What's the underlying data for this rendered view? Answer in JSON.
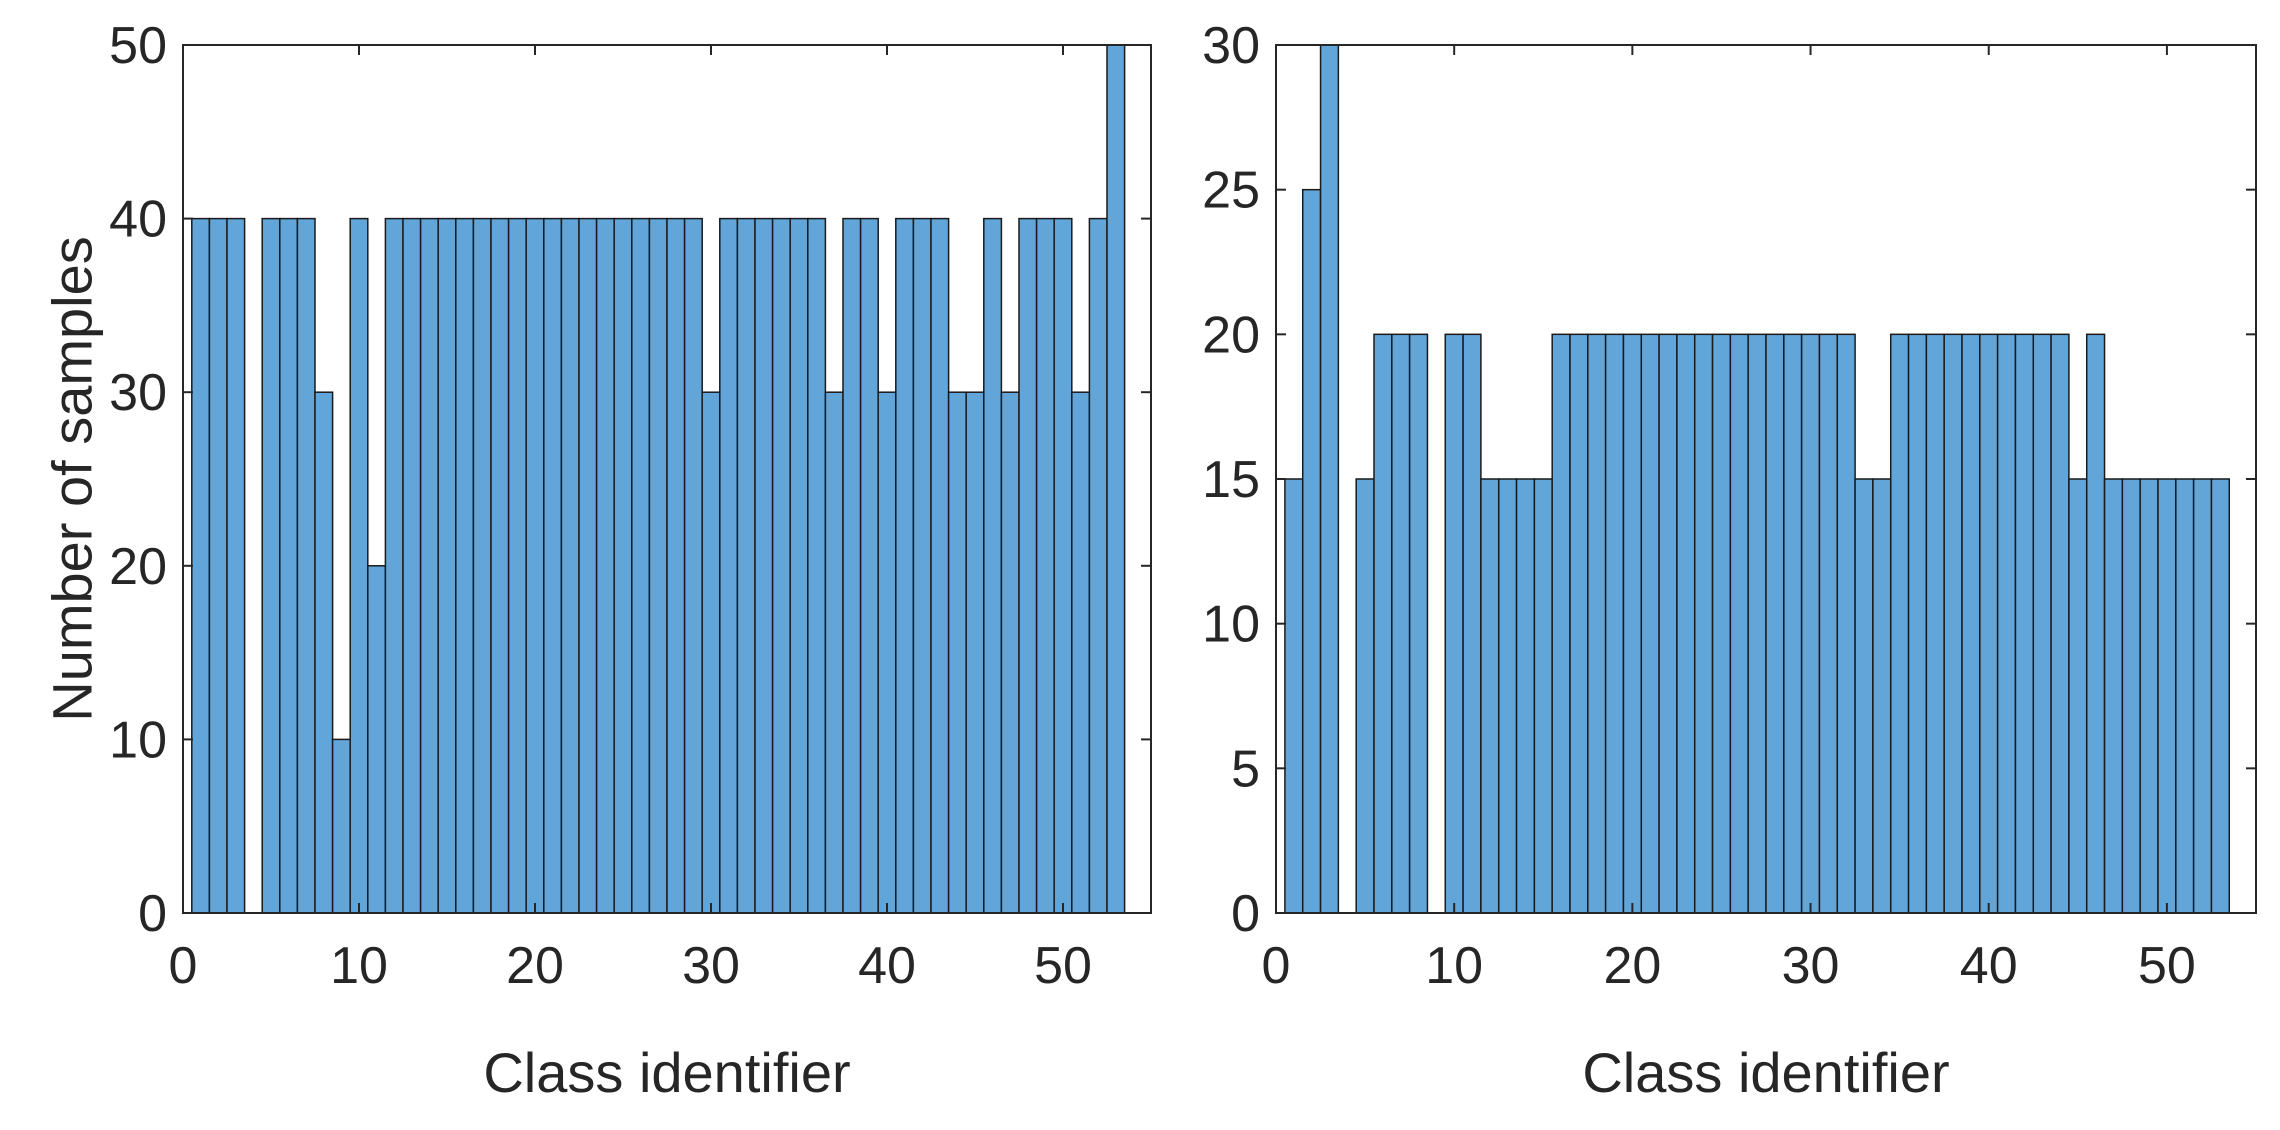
{
  "chart_data": [
    {
      "type": "bar",
      "title": "",
      "xlabel": "Class identifier",
      "ylabel": "Number of samples",
      "xlim": [
        0,
        55
      ],
      "ylim": [
        0,
        50
      ],
      "xticks": [
        0,
        10,
        20,
        30,
        40,
        50
      ],
      "yticks": [
        0,
        10,
        20,
        30,
        40,
        50
      ],
      "bar_color": "#62a6d9",
      "edge_color": "#1a1a1a",
      "grid": false,
      "x": [
        1,
        2,
        3,
        4,
        5,
        6,
        7,
        8,
        9,
        10,
        11,
        12,
        13,
        14,
        15,
        16,
        17,
        18,
        19,
        20,
        21,
        22,
        23,
        24,
        25,
        26,
        27,
        28,
        29,
        30,
        31,
        32,
        33,
        34,
        35,
        36,
        37,
        38,
        39,
        40,
        41,
        42,
        43,
        44,
        45,
        46,
        47,
        48,
        49,
        50,
        51,
        52,
        53,
        54
      ],
      "values": [
        40,
        40,
        40,
        0,
        40,
        40,
        40,
        30,
        10,
        40,
        20,
        40,
        40,
        40,
        40,
        40,
        40,
        40,
        40,
        40,
        40,
        40,
        40,
        40,
        40,
        40,
        40,
        40,
        40,
        30,
        40,
        40,
        40,
        40,
        40,
        40,
        30,
        40,
        40,
        30,
        40,
        40,
        40,
        30,
        30,
        40,
        30,
        40,
        40,
        40,
        30,
        40,
        50,
        0
      ]
    },
    {
      "type": "bar",
      "title": "",
      "xlabel": "Class identifier",
      "ylabel": "",
      "xlim": [
        0,
        55
      ],
      "ylim": [
        0,
        30
      ],
      "xticks": [
        0,
        10,
        20,
        30,
        40,
        50
      ],
      "yticks": [
        0,
        5,
        10,
        15,
        20,
        25,
        30
      ],
      "bar_color": "#62a6d9",
      "edge_color": "#1a1a1a",
      "grid": false,
      "x": [
        1,
        2,
        3,
        4,
        5,
        6,
        7,
        8,
        9,
        10,
        11,
        12,
        13,
        14,
        15,
        16,
        17,
        18,
        19,
        20,
        21,
        22,
        23,
        24,
        25,
        26,
        27,
        28,
        29,
        30,
        31,
        32,
        33,
        34,
        35,
        36,
        37,
        38,
        39,
        40,
        41,
        42,
        43,
        44,
        45,
        46,
        47,
        48,
        49,
        50,
        51,
        52,
        53
      ],
      "values": [
        15,
        25,
        30,
        0,
        15,
        20,
        20,
        20,
        0,
        20,
        20,
        15,
        15,
        15,
        15,
        20,
        20,
        20,
        20,
        20,
        20,
        20,
        20,
        20,
        20,
        20,
        20,
        20,
        20,
        20,
        20,
        20,
        15,
        15,
        20,
        20,
        20,
        20,
        20,
        20,
        20,
        20,
        20,
        20,
        15,
        20,
        15,
        15,
        15,
        15,
        15,
        15,
        15
      ]
    }
  ]
}
